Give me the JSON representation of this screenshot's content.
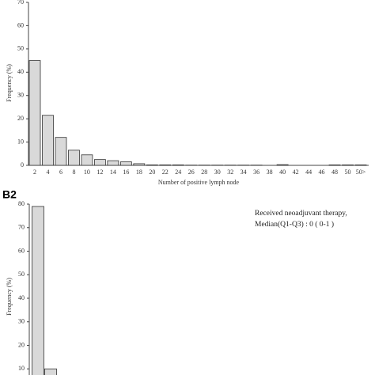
{
  "chart_data": [
    {
      "type": "bar",
      "y_label": "Frequency (%)",
      "x_label": "Number of positive lymph node",
      "categories": [
        "2",
        "4",
        "6",
        "8",
        "10",
        "12",
        "14",
        "16",
        "18",
        "20",
        "22",
        "24",
        "26",
        "28",
        "30",
        "32",
        "34",
        "36",
        "38",
        "40",
        "42",
        "44",
        "46",
        "48",
        "50",
        "50>"
      ],
      "values": [
        45,
        21.5,
        12,
        6.5,
        4.5,
        2.5,
        2,
        1.5,
        0.7,
        0.2,
        0.2,
        0.2,
        0.1,
        0.1,
        0.1,
        0.1,
        0.1,
        0.1,
        0,
        0.3,
        0,
        0,
        0,
        0.2,
        0.2,
        0.2
      ],
      "color": "#d9d9d9",
      "ylim": [
        0,
        70
      ],
      "yticks": [
        0,
        10,
        20,
        30,
        40,
        50,
        60,
        70
      ]
    },
    {
      "type": "bar",
      "title": "B2",
      "y_label": "Frequency (%)",
      "annotations": [
        "Received neoadjuvant therapy,",
        "Median(Q1-Q3) : 0 ( 0-1 )"
      ],
      "categories": [
        null,
        null
      ],
      "values": [
        79,
        10
      ],
      "color": "#d9d9d9",
      "ylim": [
        0,
        80
      ],
      "yticks": [
        10,
        20,
        30,
        40,
        50,
        60,
        70,
        80
      ]
    }
  ]
}
